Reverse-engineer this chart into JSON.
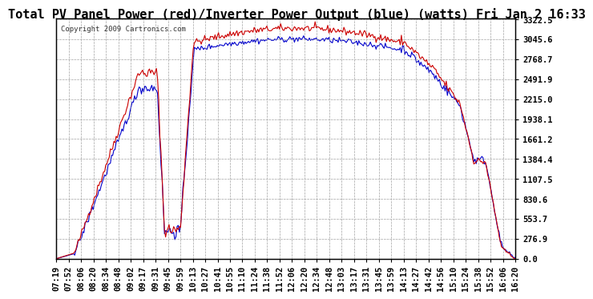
{
  "title": "Total PV Panel Power (red)/Inverter Power Output (blue) (watts) Fri Jan 2 16:33",
  "copyright": "Copyright 2009 Cartronics.com",
  "x_labels": [
    "07:19",
    "07:52",
    "08:06",
    "08:20",
    "08:34",
    "08:48",
    "09:02",
    "09:17",
    "09:31",
    "09:45",
    "09:59",
    "10:13",
    "10:27",
    "10:41",
    "10:55",
    "11:10",
    "11:24",
    "11:38",
    "11:52",
    "12:06",
    "12:20",
    "12:34",
    "12:48",
    "13:03",
    "13:17",
    "13:31",
    "13:45",
    "13:59",
    "14:13",
    "14:27",
    "14:42",
    "14:56",
    "15:10",
    "15:24",
    "15:38",
    "15:52",
    "16:06",
    "16:20"
  ],
  "y_ticks": [
    0.0,
    276.9,
    553.7,
    830.6,
    1107.5,
    1384.4,
    1661.2,
    1938.1,
    2215.0,
    2491.9,
    2768.7,
    3045.6,
    3322.5
  ],
  "y_max": 3322.5,
  "y_min": 0.0,
  "bg_color": "#ffffff",
  "plot_bg_color": "#ffffff",
  "grid_color": "#aaaaaa",
  "red_color": "#cc0000",
  "blue_color": "#0000cc",
  "title_fontsize": 11,
  "tick_fontsize": 7.5
}
